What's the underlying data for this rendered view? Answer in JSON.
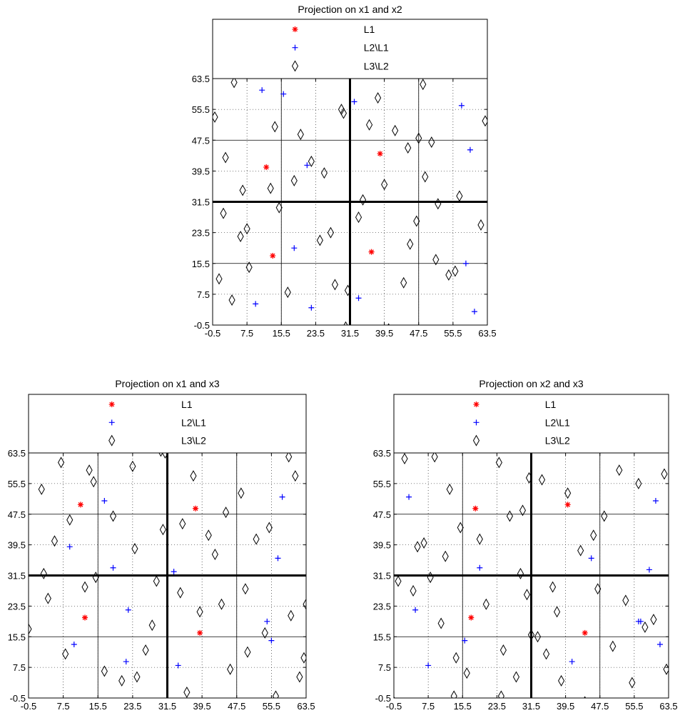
{
  "chart_data": [
    {
      "type": "scatter",
      "title": "Projection on x1 and x2",
      "xlabel": "",
      "ylabel": "",
      "xlim": [
        -0.5,
        63.5
      ],
      "ylim": [
        -0.5,
        63.5
      ],
      "xticks": [
        "-0.5",
        "7.5",
        "15.5",
        "23.5",
        "31.5",
        "39.5",
        "47.5",
        "55.5",
        "63.5"
      ],
      "yticks": [
        "-0.5",
        "7.5",
        "15.5",
        "23.5",
        "31.5",
        "39.5",
        "47.5",
        "55.5",
        "63.5"
      ],
      "grid": "dotted",
      "legend_position": "top",
      "partition": {
        "thick": [
          31.5
        ],
        "thin": [
          15.5,
          47.5
        ]
      },
      "series": [
        {
          "name": "L1",
          "marker": "asterisk",
          "color": "#ff0000",
          "x": [
            12,
            13.5,
            36.5,
            38.5
          ],
          "y": [
            40.5,
            17.5,
            18.5,
            44
          ]
        },
        {
          "name": "L2\\L1",
          "marker": "plus",
          "color": "#0000ff",
          "x": [
            11,
            16,
            18.5,
            21.5,
            22.5,
            32.5,
            33.5,
            57.5,
            59.5,
            60.5,
            58.5,
            9.5
          ],
          "y": [
            60.5,
            59.5,
            19.5,
            41,
            4,
            57.5,
            6.5,
            56.5,
            45,
            3,
            15.5,
            5
          ]
        },
        {
          "name": "L3\\L2",
          "marker": "diamond",
          "color": "#000000",
          "x": [
            0,
            2.5,
            4.5,
            1,
            2,
            4,
            6,
            6.5,
            7.5,
            8,
            13,
            14,
            15,
            17,
            18.5,
            20,
            22.5,
            24.5,
            25.5,
            27,
            28,
            29.5,
            30,
            30.5,
            31,
            33.5,
            34.5,
            36,
            38,
            39.5,
            40.5,
            42,
            44,
            45,
            45.5,
            47,
            47.5,
            48.5,
            49,
            50.5,
            51.5,
            52,
            54,
            54.5,
            56,
            57,
            60,
            62,
            63
          ],
          "y": [
            53.5,
            43,
            62.5,
            11.5,
            28.5,
            6,
            22.5,
            34.5,
            24.5,
            14.5,
            35,
            51,
            30,
            8,
            37,
            49,
            42,
            21.5,
            39,
            23.5,
            10,
            55.5,
            54.5,
            -1,
            8.5,
            27.5,
            32,
            51.5,
            58.5,
            36,
            -1.5,
            50,
            10.5,
            45.5,
            20.5,
            26.5,
            48,
            62,
            38,
            47,
            16.5,
            31,
            -2.5,
            12.5,
            13.5,
            33,
            -2.5,
            25.5,
            52.5
          ]
        }
      ]
    },
    {
      "type": "scatter",
      "title": "Projection on x1 and x3",
      "xlabel": "",
      "ylabel": "",
      "xlim": [
        -0.5,
        63.5
      ],
      "ylim": [
        -0.5,
        63.5
      ],
      "xticks": [
        "-0.5",
        "7.5",
        "15.5",
        "23.5",
        "31.5",
        "39.5",
        "47.5",
        "55.5",
        "63.5"
      ],
      "yticks": [
        "-0.5",
        "7.5",
        "15.5",
        "23.5",
        "31.5",
        "39.5",
        "47.5",
        "55.5",
        "63.5"
      ],
      "grid": "dotted",
      "legend_position": "top",
      "partition": {
        "thick": [
          31.5
        ],
        "thin": [
          15.5,
          47.5
        ]
      },
      "series": [
        {
          "name": "L1",
          "marker": "asterisk",
          "color": "#ff0000",
          "x": [
            11.5,
            12.5,
            38,
            39
          ],
          "y": [
            50,
            20.5,
            49,
            16.5
          ]
        },
        {
          "name": "L2\\L1",
          "marker": "plus",
          "color": "#0000ff",
          "x": [
            9,
            10,
            17,
            19,
            22.5,
            22,
            33,
            34,
            54.5,
            55.5,
            57,
            58
          ],
          "y": [
            39,
            13.5,
            51,
            33.5,
            22.5,
            9,
            32.5,
            8,
            19.5,
            14.5,
            36,
            52
          ]
        },
        {
          "name": "L3\\L2",
          "marker": "diamond",
          "color": "#000000",
          "x": [
            -0.5,
            1,
            2.5,
            3,
            4,
            5.5,
            7,
            8,
            9,
            12.5,
            13.5,
            14.5,
            15,
            17,
            19,
            21,
            23.5,
            24,
            26.5,
            28,
            29,
            30,
            30.5,
            31,
            34.5,
            35,
            36,
            37.5,
            39,
            40.5,
            41,
            42.5,
            44,
            45,
            46,
            48.5,
            49.5,
            50,
            52,
            54,
            55,
            56.5,
            59.5,
            61,
            62,
            63,
            63.5,
            60,
            24.5
          ],
          "y": [
            17.5,
            -2.5,
            54,
            32,
            25.5,
            40.5,
            61,
            11,
            46,
            28.5,
            59,
            56,
            31,
            6.5,
            47,
            4,
            60,
            38.5,
            12,
            18.5,
            30,
            64,
            43.5,
            63.5,
            27,
            45,
            1,
            57.5,
            22,
            -2,
            42,
            37,
            24,
            48,
            7,
            53,
            28,
            11.5,
            41,
            16.5,
            44,
            0,
            62.5,
            57.5,
            5,
            10,
            24,
            21,
            5
          ]
        }
      ]
    },
    {
      "type": "scatter",
      "title": "Projection on x2 and x3",
      "xlabel": "",
      "ylabel": "",
      "xlim": [
        -0.5,
        63.5
      ],
      "ylim": [
        -0.5,
        63.5
      ],
      "xticks": [
        "-0.5",
        "7.5",
        "15.5",
        "23.5",
        "31.5",
        "39.5",
        "47.5",
        "55.5",
        "63.5"
      ],
      "yticks": [
        "-0.5",
        "7.5",
        "15.5",
        "23.5",
        "31.5",
        "39.5",
        "47.5",
        "55.5",
        "63.5"
      ],
      "grid": "dotted",
      "legend_position": "top",
      "partition": {
        "thick": [
          31.5
        ],
        "thin": [
          15.5,
          47.5
        ]
      },
      "series": [
        {
          "name": "L1",
          "marker": "asterisk",
          "color": "#ff0000",
          "x": [
            17.5,
            18.5,
            40,
            44
          ],
          "y": [
            20.5,
            49,
            50,
            16.5
          ]
        },
        {
          "name": "L2\\L1",
          "marker": "plus",
          "color": "#0000ff",
          "x": [
            3,
            4.5,
            7.5,
            16,
            19.5,
            41,
            45.5,
            57,
            59,
            60.5,
            61.5,
            56.5
          ],
          "y": [
            52,
            22.5,
            8,
            14.5,
            33.5,
            9,
            36,
            19.5,
            33,
            51,
            13.5,
            19.5
          ]
        },
        {
          "name": "L3\\L2",
          "marker": "diamond",
          "color": "#000000",
          "x": [
            -0.5,
            0.5,
            2,
            4,
            5,
            6.5,
            8,
            9,
            10.5,
            11.5,
            12.5,
            14,
            15,
            16.5,
            19.5,
            21,
            23,
            24,
            25,
            26.5,
            28,
            29.5,
            30.5,
            31,
            33,
            34,
            35,
            36.5,
            37.5,
            38.5,
            40,
            43,
            44,
            46,
            47,
            48.5,
            50.5,
            52,
            53.5,
            55,
            56.5,
            58,
            62.5,
            63,
            29,
            13.5,
            31.5,
            60,
            24.5
          ],
          "y": [
            -1.5,
            30,
            62,
            27.5,
            39,
            40,
            31,
            62.5,
            19,
            36.5,
            54,
            10,
            44,
            6,
            41,
            24,
            -2,
            61,
            12,
            47,
            5,
            48.5,
            26.5,
            57,
            15.5,
            56.5,
            11,
            28.5,
            22,
            4,
            53,
            38,
            -1.5,
            42,
            28,
            47,
            13,
            59,
            25,
            3.5,
            55.5,
            18,
            58,
            7,
            32,
            0,
            16,
            20,
            0
          ]
        }
      ]
    }
  ]
}
